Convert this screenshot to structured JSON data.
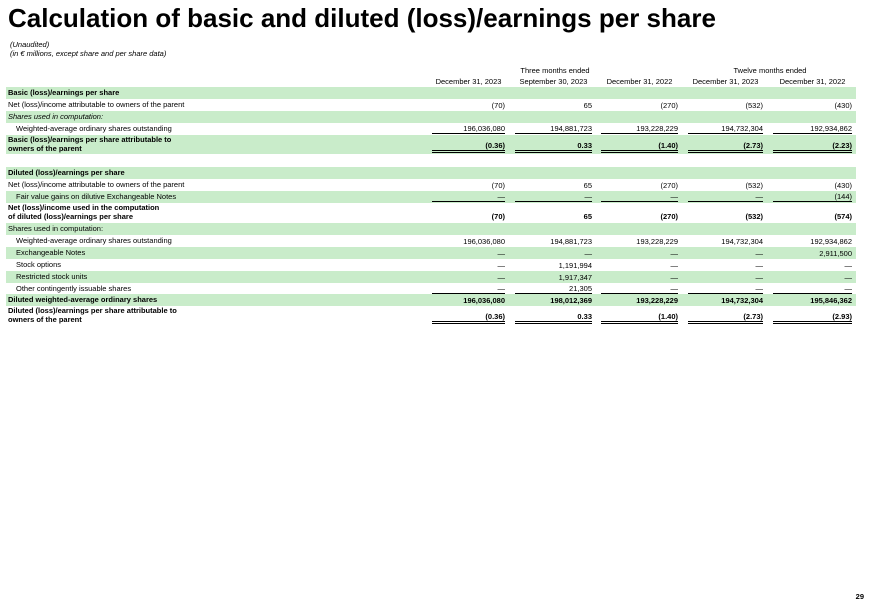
{
  "header": {
    "title": "Calculation of basic and diluted (loss)/earnings per share",
    "notes": [
      "(Unaudited)",
      "(in € millions, except share and per share data)"
    ]
  },
  "table": {
    "groups": [
      "Three months ended",
      "Twelve months ended"
    ],
    "columns": [
      "December 31, 2023",
      "September 30, 2023",
      "December 31, 2022",
      "December 31, 2023",
      "December 31, 2022"
    ],
    "rows": [
      {
        "label": "Basic (loss)/earnings per share"
      },
      {
        "label": "Net (loss)/income attributable to owners of the parent",
        "values": [
          "(70)",
          "65",
          "(270)",
          "(532)",
          "(430)"
        ]
      },
      {
        "label": "Shares used in computation:"
      },
      {
        "label": "Weighted-average ordinary shares outstanding",
        "values": [
          "196,036,080",
          "194,881,723",
          "193,228,229",
          "194,732,304",
          "192,934,862"
        ]
      },
      {
        "label": "Basic (loss)/earnings per share attributable to\nowners of the parent",
        "values": [
          "(0.36)",
          "0.33",
          "(1.40)",
          "(2.73)",
          "(2.23)"
        ]
      },
      {
        "label": "Diluted (loss)/earnings per share"
      },
      {
        "label": "Net (loss)/income attributable to owners of the parent",
        "values": [
          "(70)",
          "65",
          "(270)",
          "(532)",
          "(430)"
        ]
      },
      {
        "label": "Fair value gains on dilutive Exchangeable Notes",
        "values": [
          "—",
          "—",
          "—",
          "—",
          "(144)"
        ]
      },
      {
        "label": "Net (loss)/income used in the computation\nof diluted (loss)/earnings per share",
        "values": [
          "(70)",
          "65",
          "(270)",
          "(532)",
          "(574)"
        ]
      },
      {
        "label": "Shares used in computation:"
      },
      {
        "label": "Weighted-average ordinary shares outstanding",
        "values": [
          "196,036,080",
          "194,881,723",
          "193,228,229",
          "194,732,304",
          "192,934,862"
        ]
      },
      {
        "label": "Exchangeable Notes",
        "values": [
          "—",
          "—",
          "—",
          "—",
          "2,911,500"
        ]
      },
      {
        "label": "Stock options",
        "values": [
          "—",
          "1,191,994",
          "—",
          "—",
          "—"
        ]
      },
      {
        "label": "Restricted stock units",
        "values": [
          "—",
          "1,917,347",
          "—",
          "—",
          "—"
        ]
      },
      {
        "label": "Other contingently issuable shares",
        "values": [
          "—",
          "21,305",
          "—",
          "—",
          "—"
        ]
      },
      {
        "label": "Diluted weighted-average ordinary shares",
        "values": [
          "196,036,080",
          "198,012,369",
          "193,228,229",
          "194,732,304",
          "195,846,362"
        ]
      },
      {
        "label": "Diluted (loss)/earnings per share attributable to\nowners of the parent",
        "values": [
          "(0.36)",
          "0.33",
          "(1.40)",
          "(2.73)",
          "(2.93)"
        ]
      }
    ]
  },
  "footer": {
    "page": "29"
  }
}
